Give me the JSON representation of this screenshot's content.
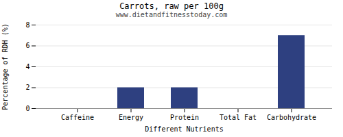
{
  "chart_data": {
    "type": "bar",
    "title": "Carrots, raw per 100g",
    "subtitle": "www.dietandfitnesstoday.com",
    "xlabel": "Different Nutrients",
    "ylabel": "Percentage of RDH (%)",
    "categories": [
      "Caffeine",
      "Energy",
      "Protein",
      "Total Fat",
      "Carbohydrate"
    ],
    "values": [
      0,
      2,
      2,
      0,
      7
    ],
    "color": "#2e4080",
    "ylim": [
      0,
      8
    ],
    "yticks": [
      0,
      2,
      4,
      6,
      8
    ],
    "grid": true
  }
}
